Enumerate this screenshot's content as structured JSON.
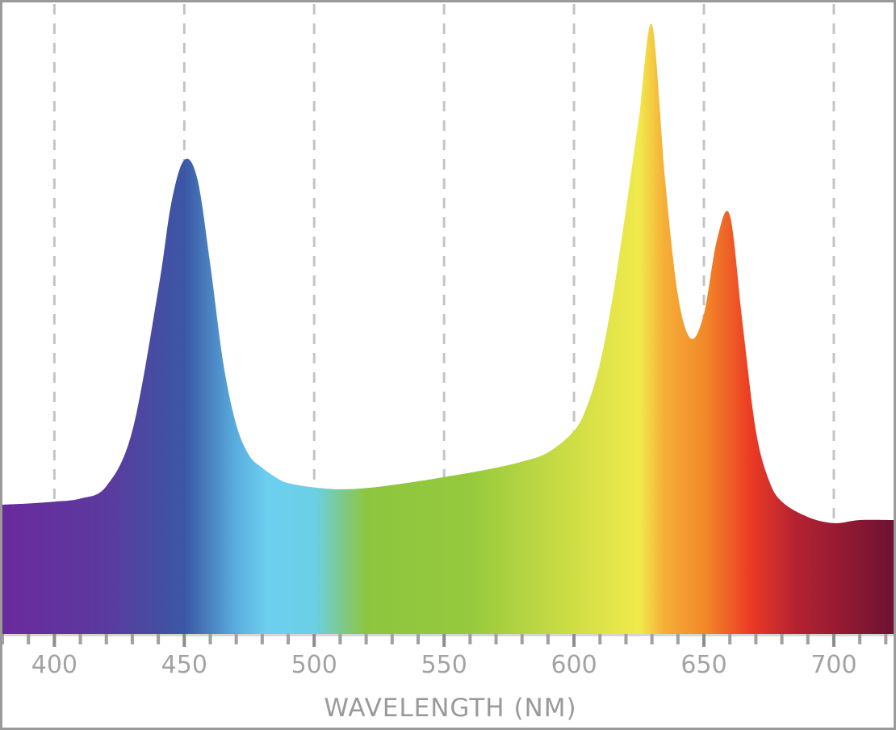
{
  "chart_data": {
    "type": "area",
    "title": "",
    "xlabel": "WAVELENGTH (NM)",
    "ylabel": "",
    "xlim": [
      380,
      723
    ],
    "ylim": [
      0,
      1.0
    ],
    "x_ticks": [
      400,
      450,
      500,
      550,
      600,
      650,
      700
    ],
    "x_tick_labels": [
      "400",
      "450",
      "500",
      "550",
      "600",
      "650",
      "700"
    ],
    "minor_tick_step": 10,
    "grid": "vertical dashed at major ticks",
    "legend": "none",
    "fill": "visible spectrum color gradient",
    "series": [
      {
        "x": [
          380,
          390,
          400,
          410,
          420,
          430,
          440,
          445,
          450,
          455,
          460,
          465,
          470,
          475,
          480,
          485,
          490,
          500,
          510,
          520,
          530,
          540,
          550,
          560,
          570,
          580,
          590,
          600,
          605,
          610,
          615,
          620,
          625,
          630,
          635,
          640,
          645,
          650,
          655,
          660,
          665,
          670,
          675,
          680,
          690,
          700,
          710,
          723
        ],
        "y": [
          0.21,
          0.212,
          0.215,
          0.22,
          0.24,
          0.33,
          0.56,
          0.7,
          0.77,
          0.74,
          0.6,
          0.44,
          0.34,
          0.29,
          0.27,
          0.255,
          0.245,
          0.238,
          0.235,
          0.237,
          0.242,
          0.248,
          0.255,
          0.262,
          0.27,
          0.28,
          0.295,
          0.33,
          0.37,
          0.44,
          0.55,
          0.69,
          0.84,
          0.99,
          0.74,
          0.55,
          0.48,
          0.52,
          0.64,
          0.68,
          0.5,
          0.33,
          0.25,
          0.215,
          0.19,
          0.18,
          0.185,
          0.185
        ]
      }
    ],
    "colors": {
      "frame": "#9a9a9a",
      "grid": "#c4c4c4",
      "axis": "#9a9a9a",
      "labels": "#a3a3a3"
    },
    "gradient_stops": [
      {
        "x": 380,
        "color": "#6a2a9c"
      },
      {
        "x": 420,
        "color": "#5b3a9e"
      },
      {
        "x": 450,
        "color": "#3b57a5"
      },
      {
        "x": 470,
        "color": "#5aaede"
      },
      {
        "x": 482,
        "color": "#6dcff0"
      },
      {
        "x": 500,
        "color": "#6bcfe6"
      },
      {
        "x": 520,
        "color": "#8cc63f"
      },
      {
        "x": 560,
        "color": "#96c93d"
      },
      {
        "x": 600,
        "color": "#cfde45"
      },
      {
        "x": 625,
        "color": "#f1ea4c"
      },
      {
        "x": 635,
        "color": "#f6ad37"
      },
      {
        "x": 650,
        "color": "#f18a29"
      },
      {
        "x": 668,
        "color": "#ec3b24"
      },
      {
        "x": 685,
        "color": "#b52232"
      },
      {
        "x": 723,
        "color": "#6e1233"
      }
    ]
  }
}
